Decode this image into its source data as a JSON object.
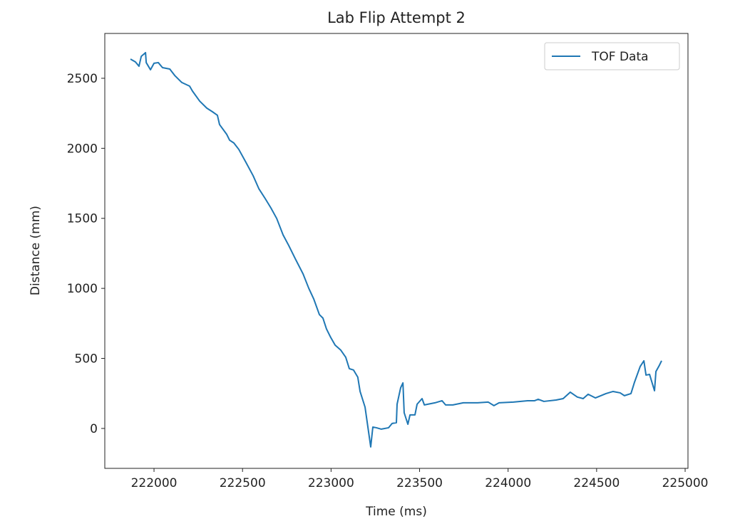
{
  "chart_data": {
    "type": "line",
    "title": "Lab Flip Attempt 2",
    "x_label": "Time (ms)",
    "y_label": "Distance (mm)",
    "xlim": [
      221722,
      225016
    ],
    "ylim": [
      -285,
      2820
    ],
    "xticks": [
      222000,
      222500,
      223000,
      223500,
      224000,
      224500,
      225000
    ],
    "yticks": [
      0,
      500,
      1000,
      1500,
      2000,
      2500
    ],
    "legend": "upper right",
    "series": [
      {
        "name": "TOF Data",
        "color": "#1f77b4",
        "x": [
          221867,
          221895,
          221915,
          221928,
          221952,
          221956,
          221980,
          222000,
          222024,
          222048,
          222089,
          222117,
          222157,
          222201,
          222217,
          222258,
          222298,
          222330,
          222358,
          222370,
          222411,
          222427,
          222451,
          222479,
          222519,
          222560,
          222592,
          222628,
          222660,
          222693,
          222729,
          222761,
          222797,
          222842,
          222874,
          222902,
          222934,
          222954,
          222974,
          222998,
          223023,
          223055,
          223083,
          223103,
          223127,
          223151,
          223164,
          223192,
          223208,
          223224,
          223236,
          223256,
          223284,
          223325,
          223345,
          223369,
          223373,
          223393,
          223406,
          223413,
          223434,
          223446,
          223474,
          223486,
          223514,
          223527,
          223587,
          223627,
          223647,
          223688,
          223747,
          223828,
          223888,
          223920,
          223949,
          224030,
          224110,
          224150,
          224170,
          224202,
          224271,
          224311,
          224351,
          224391,
          224424,
          224452,
          224493,
          224553,
          224593,
          224633,
          224657,
          224694,
          224714,
          224746,
          224767,
          224779,
          224799,
          224827,
          224835,
          224855,
          224867
        ],
        "values": [
          2637,
          2617,
          2586,
          2657,
          2683,
          2612,
          2561,
          2607,
          2612,
          2576,
          2566,
          2520,
          2470,
          2444,
          2409,
          2337,
          2287,
          2261,
          2236,
          2170,
          2099,
          2058,
          2038,
          1992,
          1900,
          1804,
          1712,
          1641,
          1575,
          1499,
          1382,
          1306,
          1214,
          1103,
          1001,
          925,
          813,
          788,
          711,
          650,
          595,
          559,
          508,
          427,
          417,
          366,
          264,
          152,
          10,
          -132,
          10,
          5,
          -5,
          5,
          36,
          41,
          173,
          290,
          325,
          112,
          30,
          97,
          97,
          173,
          213,
          168,
          183,
          198,
          168,
          168,
          183,
          183,
          188,
          163,
          183,
          188,
          198,
          198,
          208,
          193,
          203,
          213,
          259,
          224,
          213,
          244,
          218,
          249,
          264,
          254,
          234,
          249,
          330,
          442,
          483,
          381,
          386,
          269,
          406,
          452,
          483
        ]
      }
    ]
  }
}
